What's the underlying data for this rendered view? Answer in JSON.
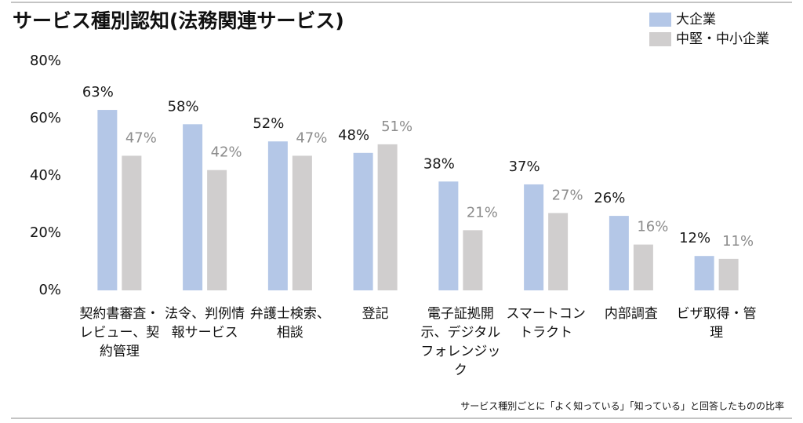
{
  "chart_data": {
    "type": "bar",
    "title": "サービス種別認知(法務関連サービス)",
    "note": "サービス種別ごとに「よく知っている」「知っている」と回答したものの比率",
    "categories": [
      "契約書審査・レビュー、契約管理",
      "法令、判例情報サービス",
      "弁護士検索、相談",
      "登記",
      "電子証拠開示、デジタルフォレンジック",
      "スマートコントラクト",
      "内部調査",
      "ビザ取得・管理"
    ],
    "series": [
      {
        "name": "大企業",
        "color": "#b4c7e7",
        "label_color": "#1a1a1a",
        "values": [
          63,
          58,
          52,
          48,
          38,
          37,
          26,
          12
        ],
        "value_labels": [
          "63%",
          "58%",
          "52%",
          "48%",
          "38%",
          "37%",
          "26%",
          "12%"
        ]
      },
      {
        "name": "中堅・中小企業",
        "color": "#d0cece",
        "label_color": "#8c8c8c",
        "values": [
          47,
          42,
          47,
          51,
          21,
          27,
          16,
          11
        ],
        "value_labels": [
          "47%",
          "42%",
          "47%",
          "51%",
          "21%",
          "27%",
          "16%",
          "11%"
        ]
      }
    ],
    "ylim": [
      0,
      80
    ],
    "yticks": [
      {
        "value": 0,
        "label": "0%"
      },
      {
        "value": 20,
        "label": "20%"
      },
      {
        "value": 40,
        "label": "40%"
      },
      {
        "value": 60,
        "label": "60%"
      },
      {
        "value": 80,
        "label": "80%"
      }
    ],
    "grid": false
  }
}
